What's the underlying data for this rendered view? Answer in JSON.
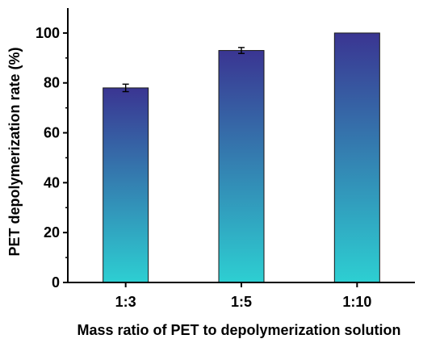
{
  "chart_data": {
    "type": "bar",
    "title": "",
    "xlabel": "Mass ratio of PET to depolymerization solution",
    "ylabel": "PET depolymerization rate (%)",
    "categories": [
      "1:3",
      "1:5",
      "1:10"
    ],
    "values": [
      78,
      93,
      100
    ],
    "errors": [
      1.5,
      1.2,
      0
    ],
    "ylim": [
      0,
      110
    ],
    "yticks": [
      0,
      20,
      40,
      60,
      80,
      100
    ],
    "grid": false,
    "legend": "none",
    "colors": {
      "bar_top": "#3a3592",
      "bar_bottom": "#2dcfd2",
      "bar_stroke": "#1a1a1a",
      "axis": "#000000"
    }
  }
}
